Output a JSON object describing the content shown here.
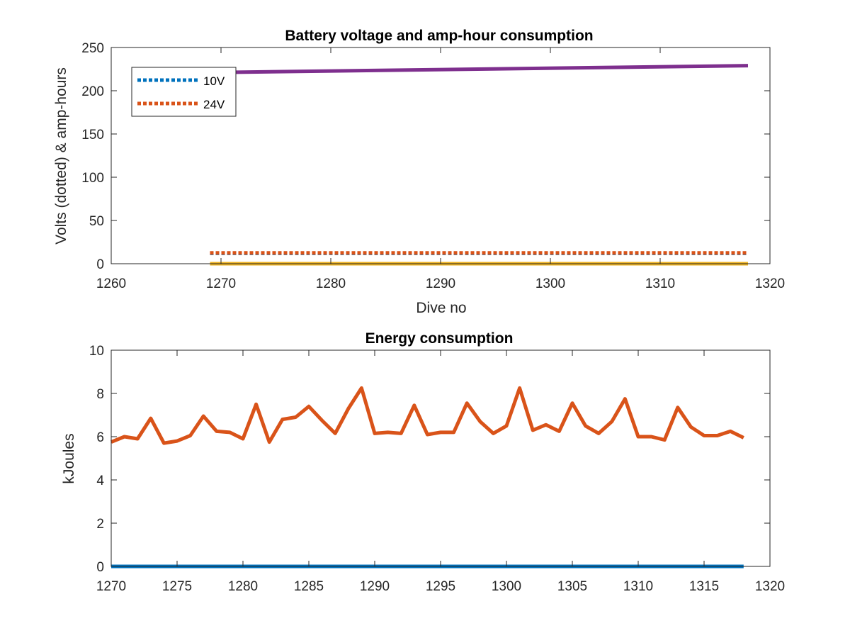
{
  "chart_data": [
    {
      "type": "line",
      "title": "Battery voltage and amp-hour consumption",
      "xlabel": "Dive no",
      "ylabel": "Volts (dotted) & amp-hours",
      "xlim": [
        1260,
        1320
      ],
      "ylim": [
        0,
        250
      ],
      "xticks": [
        1260,
        1270,
        1280,
        1290,
        1300,
        1310,
        1320
      ],
      "yticks": [
        0,
        50,
        100,
        150,
        200,
        250
      ],
      "grid": false,
      "legend_position": "top-left",
      "series": [
        {
          "name": "10V",
          "style": "dotted",
          "color": "#0072BD",
          "x": [
            1269,
            1318
          ],
          "y": [
            12,
            12
          ]
        },
        {
          "name": "24V",
          "style": "dotted",
          "color": "#D95319",
          "x": [
            1269,
            1318
          ],
          "y": [
            12.5,
            12.5
          ]
        },
        {
          "style": "solid",
          "color": "#EDB120",
          "x": [
            1269,
            1318
          ],
          "y": [
            0,
            0
          ]
        },
        {
          "style": "solid",
          "color": "#7E2F8E",
          "x": [
            1269,
            1318
          ],
          "y": [
            221,
            229
          ]
        }
      ]
    },
    {
      "type": "line",
      "title": "Energy consumption",
      "xlabel": "",
      "ylabel": "kJoules",
      "xlim": [
        1270,
        1320
      ],
      "ylim": [
        0,
        10
      ],
      "xticks": [
        1270,
        1275,
        1280,
        1285,
        1290,
        1295,
        1300,
        1305,
        1310,
        1315,
        1320
      ],
      "yticks": [
        0,
        2,
        4,
        6,
        8,
        10
      ],
      "grid": false,
      "series": [
        {
          "style": "solid",
          "color": "#0072BD",
          "x": [
            1270,
            1318
          ],
          "y": [
            0,
            0
          ]
        },
        {
          "style": "solid",
          "color": "#D95319",
          "x": [
            1270,
            1271,
            1272,
            1273,
            1274,
            1275,
            1276,
            1277,
            1278,
            1279,
            1280,
            1281,
            1282,
            1283,
            1284,
            1285,
            1286,
            1287,
            1288,
            1289,
            1290,
            1291,
            1292,
            1293,
            1294,
            1295,
            1296,
            1297,
            1298,
            1299,
            1300,
            1301,
            1302,
            1303,
            1304,
            1305,
            1306,
            1307,
            1308,
            1309,
            1310,
            1311,
            1312,
            1313,
            1314,
            1315,
            1316,
            1317,
            1318
          ],
          "y": [
            5.75,
            6.0,
            5.9,
            6.85,
            5.7,
            5.8,
            6.05,
            6.95,
            6.25,
            6.2,
            5.9,
            7.5,
            5.75,
            6.8,
            6.9,
            7.4,
            6.75,
            6.15,
            7.3,
            8.25,
            6.15,
            6.2,
            6.15,
            7.45,
            6.1,
            6.2,
            6.2,
            7.55,
            6.7,
            6.15,
            6.5,
            8.25,
            6.3,
            6.55,
            6.25,
            7.55,
            6.5,
            6.15,
            6.7,
            7.75,
            6.0,
            6.0,
            5.85,
            7.35,
            6.45,
            6.05,
            6.05,
            6.25,
            5.95
          ]
        }
      ]
    }
  ]
}
